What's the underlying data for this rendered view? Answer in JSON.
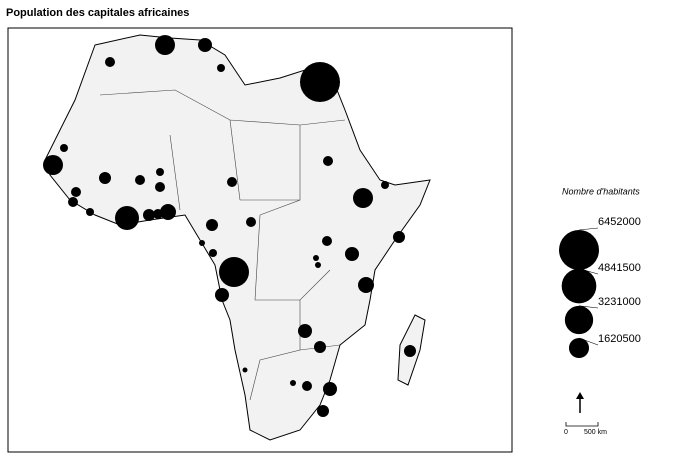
{
  "title": "Population des capitales africaines",
  "legend": {
    "title": "Nombre d'habitants",
    "values": [
      6452000,
      4841500,
      3231000,
      1620500
    ]
  },
  "bubbles": [
    1613000,
    790000,
    258000,
    6452000,
    403000,
    1613000,
    258000,
    403000,
    403000,
    258000,
    581000,
    403000,
    258000,
    403000,
    2323000,
    581000,
    403000,
    1032000,
    403000,
    403000,
    258000,
    1613000,
    581000,
    581000,
    403000,
    145000,
    258000,
    3629000,
    790000,
    403000,
    145000,
    145000,
    790000,
    1032000,
    790000,
    581000,
    581000,
    145000,
    403000,
    790000,
    581000,
    100000
  ],
  "scale": {
    "start": "0",
    "label": "500 km"
  }
}
